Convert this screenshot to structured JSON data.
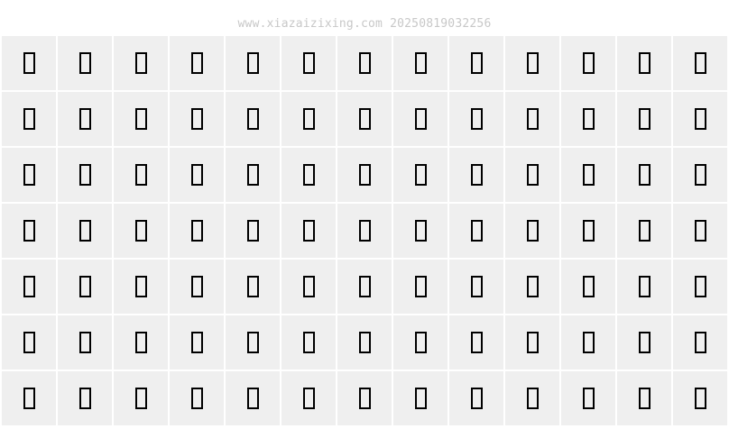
{
  "watermark": "www.xiazaizixing.com 20250819032256",
  "grid": {
    "rows": 7,
    "columns": 13,
    "glyph": "missing-glyph-box",
    "cell_color": "#efefef",
    "glyph_color": "#000000"
  }
}
